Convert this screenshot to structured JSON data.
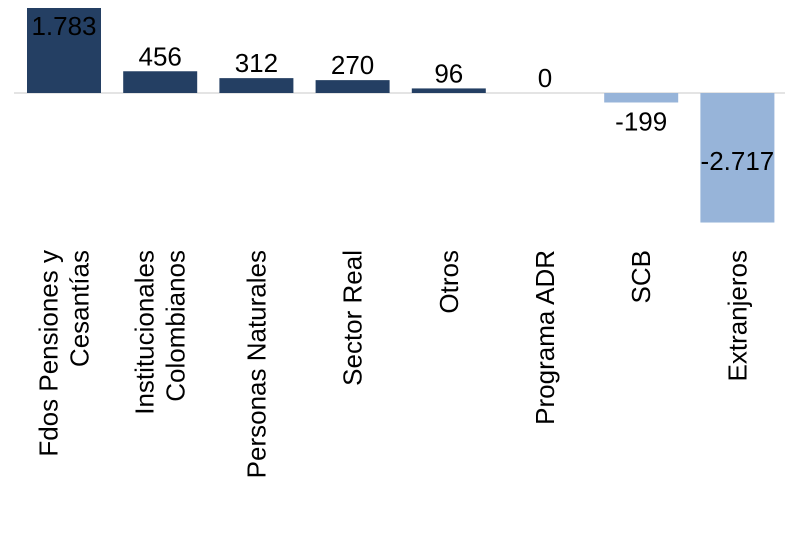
{
  "chart_data": {
    "type": "bar",
    "title": "",
    "xlabel": "",
    "ylabel": "",
    "categories": [
      [
        "Fdos Pensiones y",
        "Cesantías"
      ],
      [
        "Institucionales",
        "Colombianos"
      ],
      [
        "Personas Naturales"
      ],
      [
        "Sector Real"
      ],
      [
        "Otros"
      ],
      [
        "Programa ADR"
      ],
      [
        "SCB"
      ],
      [
        "Extranjeros"
      ]
    ],
    "values": [
      1783,
      456,
      312,
      270,
      96,
      0,
      -199,
      -2717
    ],
    "value_labels": [
      "1.783",
      "456",
      "312",
      "270",
      "96",
      "0",
      "-199",
      "-2.717"
    ],
    "ylim": [
      -2717,
      1783
    ],
    "grid": false,
    "legend": "none",
    "colors": {
      "positive": "#243f63",
      "negative": "#97b4d9",
      "axis": "#c8c8c8",
      "inside_label": "#ffffff",
      "outside_label": "#000000"
    }
  }
}
